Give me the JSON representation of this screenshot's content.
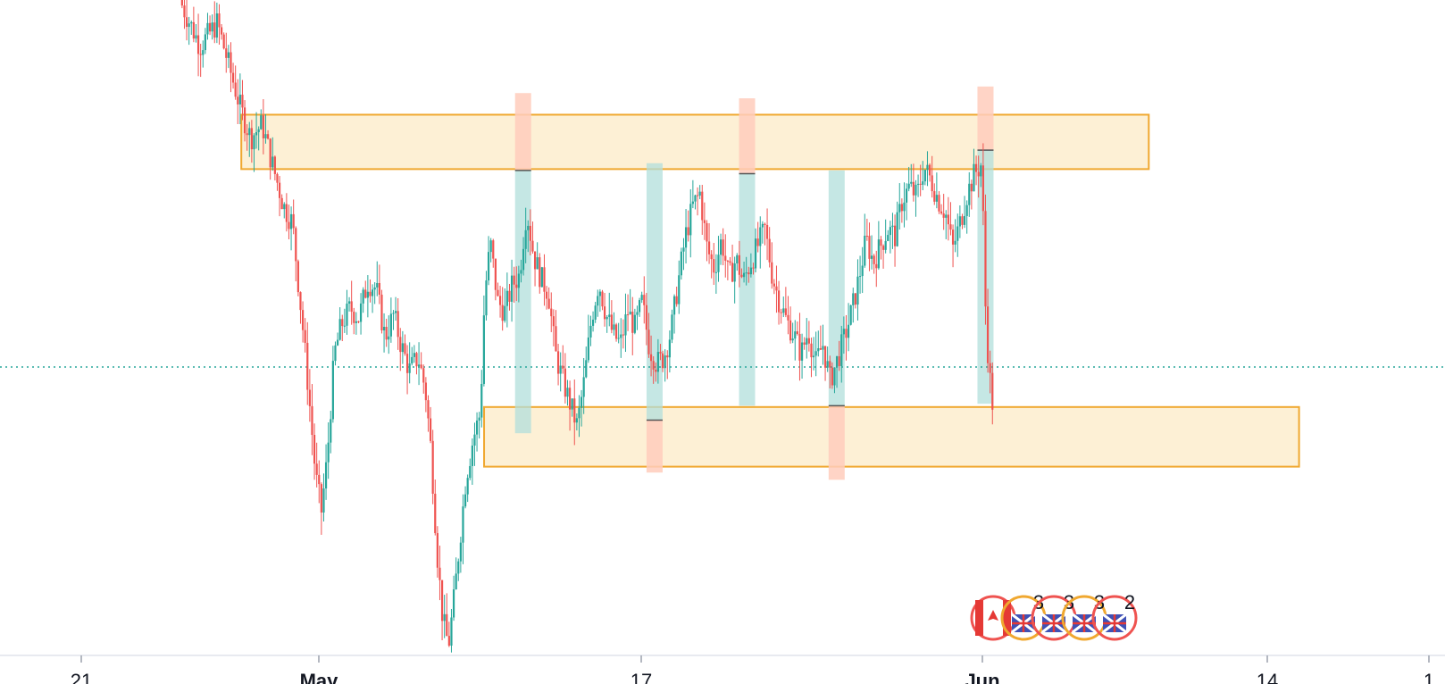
{
  "chart_data": {
    "type": "candlestick",
    "title": "",
    "xlabel": "",
    "ylabel": "",
    "x_ticks": [
      {
        "label": "21",
        "bold": false,
        "date": "2025-04-21"
      },
      {
        "label": "May",
        "bold": true,
        "date": "2025-05-01"
      },
      {
        "label": "17",
        "bold": false,
        "date": "2025-05-17"
      },
      {
        "label": "Jun",
        "bold": true,
        "date": "2025-06-01"
      },
      {
        "label": "14",
        "bold": false,
        "date": "2025-06-14"
      },
      {
        "label": "1",
        "bold": false,
        "date": "2025-07-01"
      }
    ],
    "y_range": [
      0,
      100
    ],
    "current_price": 44,
    "colors": {
      "up": "#26a69a",
      "down": "#ef5350",
      "zone_fill": "#fdf0d5",
      "zone_border": "#f0a830",
      "buy_fill": "#b2dfdb",
      "sell_fill": "#ffccbc",
      "price_line": "#26a69a"
    },
    "zones": [
      {
        "name": "resistance",
        "x_start": 0.167,
        "x_end": 0.795,
        "y_top": 82.5,
        "y_bottom": 74.2
      },
      {
        "name": "support",
        "x_start": 0.335,
        "x_end": 0.899,
        "y_top": 37.9,
        "y_bottom": 28.8
      }
    ],
    "trade_boxes": [
      {
        "x": 0.362,
        "profit_top": 74.0,
        "profit_bottom": 33.9,
        "loss_top": 85.8,
        "loss_bottom": 74.0
      },
      {
        "x": 0.453,
        "profit_top": 75.1,
        "profit_bottom": 35.9,
        "loss_top": 35.9,
        "loss_bottom": 27.9
      },
      {
        "x": 0.517,
        "profit_top": 73.5,
        "profit_bottom": 38.1,
        "loss_top": 85.0,
        "loss_bottom": 73.5
      },
      {
        "x": 0.579,
        "profit_top": 74.0,
        "profit_bottom": 38.1,
        "loss_top": 38.1,
        "loss_bottom": 26.8
      },
      {
        "x": 0.682,
        "profit_top": 77.1,
        "profit_bottom": 38.4,
        "loss_top": 86.8,
        "loss_bottom": 77.1
      }
    ],
    "events": [
      {
        "icon": "canada-flag-icon",
        "count": ""
      },
      {
        "icon": "uk-flag-icon",
        "count": "3"
      },
      {
        "icon": "uk-flag-icon",
        "count": "3"
      },
      {
        "icon": "uk-flag-icon",
        "count": "3"
      },
      {
        "icon": "uk-flag-icon",
        "count": "2"
      }
    ],
    "price_path": [
      [
        0.126,
        100.0
      ],
      [
        0.14,
        93.0
      ],
      [
        0.152,
        96.5
      ],
      [
        0.16,
        90.0
      ],
      [
        0.168,
        83.5
      ],
      [
        0.175,
        79.0
      ],
      [
        0.183,
        81.0
      ],
      [
        0.19,
        75.0
      ],
      [
        0.198,
        68.5
      ],
      [
        0.204,
        66.0
      ],
      [
        0.208,
        57.0
      ],
      [
        0.212,
        48.0
      ],
      [
        0.216,
        38.0
      ],
      [
        0.22,
        27.5
      ],
      [
        0.224,
        22.0
      ],
      [
        0.228,
        30.0
      ],
      [
        0.233,
        46.0
      ],
      [
        0.238,
        50.5
      ],
      [
        0.244,
        53.0
      ],
      [
        0.25,
        51.5
      ],
      [
        0.256,
        57.0
      ],
      [
        0.262,
        56.0
      ],
      [
        0.268,
        48.5
      ],
      [
        0.274,
        52.0
      ],
      [
        0.279,
        47.5
      ],
      [
        0.285,
        43.5
      ],
      [
        0.291,
        45.5
      ],
      [
        0.296,
        40.5
      ],
      [
        0.3,
        31.0
      ],
      [
        0.304,
        16.0
      ],
      [
        0.308,
        5.5
      ],
      [
        0.312,
        1.5
      ],
      [
        0.316,
        9.0
      ],
      [
        0.32,
        18.0
      ],
      [
        0.324,
        27.0
      ],
      [
        0.329,
        33.0
      ],
      [
        0.334,
        37.0
      ],
      [
        0.337,
        55.0
      ],
      [
        0.341,
        63.0
      ],
      [
        0.346,
        54.0
      ],
      [
        0.351,
        52.5
      ],
      [
        0.356,
        56.5
      ],
      [
        0.361,
        58.0
      ],
      [
        0.366,
        68.0
      ],
      [
        0.371,
        61.0
      ],
      [
        0.376,
        57.5
      ],
      [
        0.381,
        55.5
      ],
      [
        0.386,
        46.0
      ],
      [
        0.391,
        42.0
      ],
      [
        0.396,
        38.5
      ],
      [
        0.401,
        35.0
      ],
      [
        0.406,
        42.0
      ],
      [
        0.411,
        51.5
      ],
      [
        0.416,
        57.0
      ],
      [
        0.421,
        52.0
      ],
      [
        0.426,
        49.0
      ],
      [
        0.431,
        47.5
      ],
      [
        0.436,
        52.5
      ],
      [
        0.441,
        50.0
      ],
      [
        0.446,
        54.0
      ],
      [
        0.451,
        47.0
      ],
      [
        0.456,
        44.5
      ],
      [
        0.461,
        45.5
      ],
      [
        0.466,
        49.5
      ],
      [
        0.471,
        57.0
      ],
      [
        0.476,
        64.0
      ],
      [
        0.481,
        68.5
      ],
      [
        0.486,
        70.5
      ],
      [
        0.491,
        62.0
      ],
      [
        0.496,
        59.0
      ],
      [
        0.501,
        63.5
      ],
      [
        0.506,
        57.5
      ],
      [
        0.511,
        60.5
      ],
      [
        0.516,
        57.0
      ],
      [
        0.521,
        60.0
      ],
      [
        0.526,
        62.5
      ],
      [
        0.531,
        65.0
      ],
      [
        0.536,
        58.0
      ],
      [
        0.541,
        54.0
      ],
      [
        0.546,
        51.0
      ],
      [
        0.551,
        49.0
      ],
      [
        0.556,
        46.0
      ],
      [
        0.561,
        49.5
      ],
      [
        0.566,
        44.5
      ],
      [
        0.571,
        47.5
      ],
      [
        0.576,
        42.0
      ],
      [
        0.581,
        45.0
      ],
      [
        0.586,
        48.5
      ],
      [
        0.591,
        52.5
      ],
      [
        0.596,
        57.5
      ],
      [
        0.601,
        63.5
      ],
      [
        0.606,
        60.0
      ],
      [
        0.611,
        62.5
      ],
      [
        0.616,
        65.0
      ],
      [
        0.621,
        64.0
      ],
      [
        0.626,
        69.5
      ],
      [
        0.631,
        71.5
      ],
      [
        0.636,
        70.0
      ],
      [
        0.641,
        74.5
      ],
      [
        0.646,
        72.5
      ],
      [
        0.651,
        69.5
      ],
      [
        0.656,
        67.5
      ],
      [
        0.661,
        62.0
      ],
      [
        0.666,
        66.0
      ],
      [
        0.671,
        70.5
      ],
      [
        0.676,
        73.5
      ],
      [
        0.681,
        75.0
      ],
      [
        0.684,
        50.0
      ],
      [
        0.688,
        38.5
      ]
    ]
  }
}
